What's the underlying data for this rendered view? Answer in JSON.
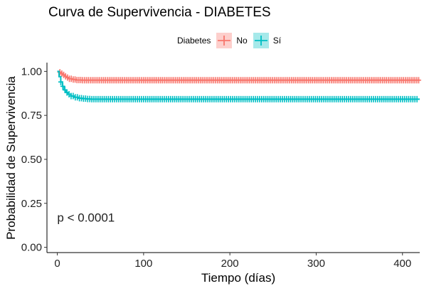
{
  "chart_data": {
    "type": "line",
    "title": "Curva de Supervivencia - DIABETES",
    "xlabel": "Tiempo (días)",
    "ylabel": "Probabilidad de Supervivencia",
    "xlim": [
      -12,
      420
    ],
    "ylim": [
      -0.03,
      1.05
    ],
    "x_ticks": [
      0,
      100,
      200,
      300,
      400
    ],
    "y_ticks": [
      0.0,
      0.25,
      0.5,
      0.75,
      1.0
    ],
    "x_tick_labels": [
      "0",
      "100",
      "200",
      "300",
      "400"
    ],
    "y_tick_labels": [
      "0.00",
      "0.25",
      "0.50",
      "0.75",
      "1.00"
    ],
    "grid": false,
    "legend": {
      "title": "Diabetes",
      "position": "top",
      "entries": [
        "No",
        "Sí"
      ]
    },
    "annotation": "p < 0.0001",
    "series": [
      {
        "name": "No",
        "color": "#F8766D",
        "x": [
          0,
          2,
          4,
          6,
          8,
          10,
          14,
          18,
          22,
          28,
          35,
          420
        ],
        "y": [
          1.0,
          0.995,
          0.988,
          0.98,
          0.972,
          0.965,
          0.958,
          0.954,
          0.951,
          0.95,
          0.95,
          0.95
        ]
      },
      {
        "name": "Sí",
        "color": "#00BFC4",
        "x": [
          0,
          2,
          4,
          6,
          8,
          10,
          12,
          16,
          20,
          24,
          28,
          33,
          38,
          420
        ],
        "y": [
          1.0,
          0.97,
          0.94,
          0.915,
          0.895,
          0.88,
          0.87,
          0.86,
          0.853,
          0.848,
          0.845,
          0.843,
          0.842,
          0.842
        ]
      }
    ]
  }
}
